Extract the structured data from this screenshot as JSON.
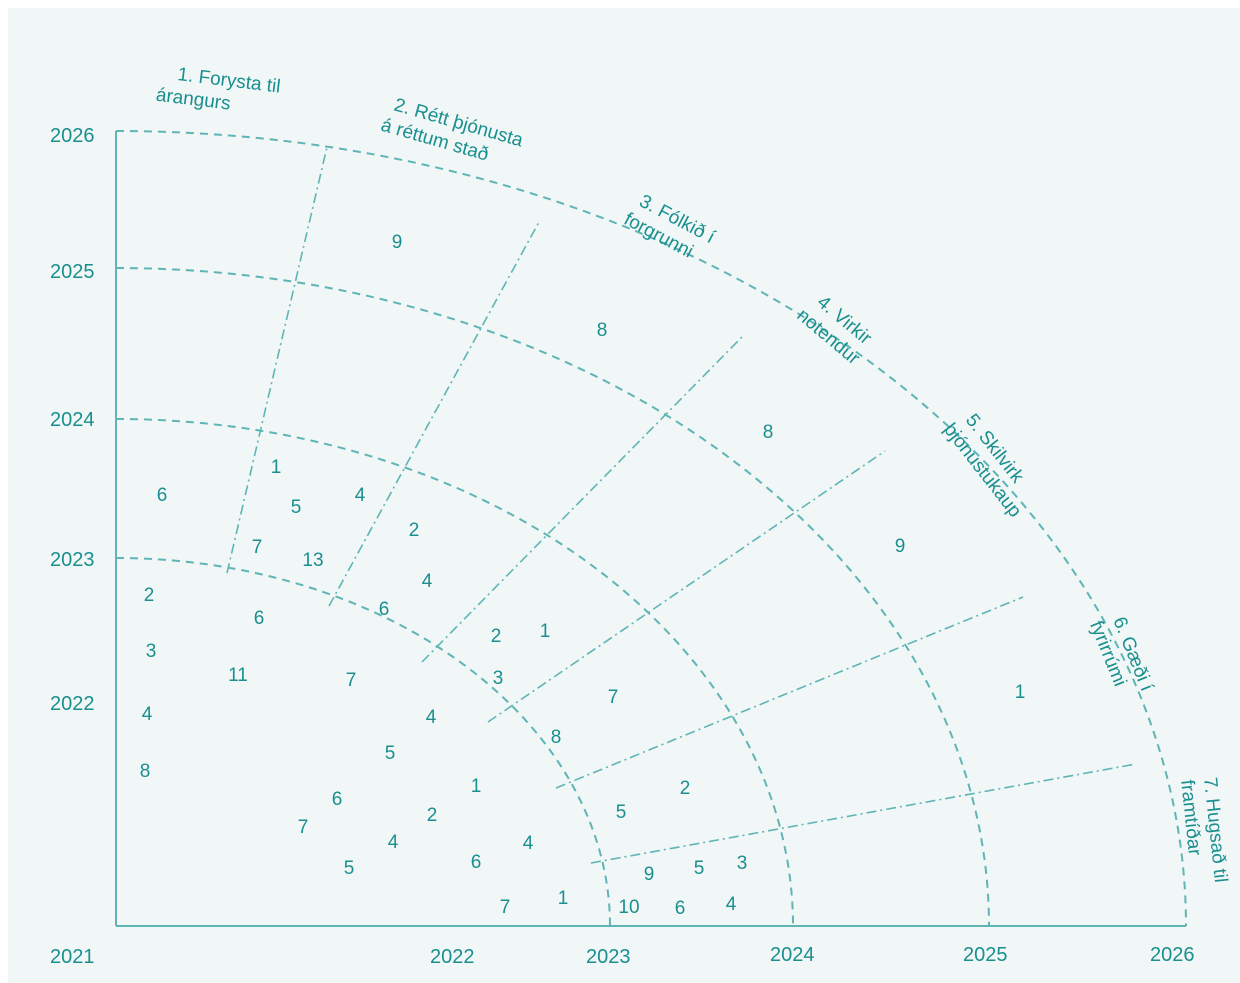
{
  "colors": {
    "accent": "#1a8f8f",
    "line": "#5fb5b5",
    "background": "#f1f6f6"
  },
  "vertical_years": [
    "2026",
    "2025",
    "2024",
    "2023",
    "2022"
  ],
  "horizontal_years": [
    "2021",
    "2022",
    "2023",
    "2024",
    "2025",
    "2026"
  ],
  "pillars": [
    {
      "line1": "1. Forysta til",
      "line2": "árangurs"
    },
    {
      "line1": "2. Rétt þjónusta",
      "line2": "á réttum stað"
    },
    {
      "line1": "3. Fólkið í",
      "line2": "forgrunni"
    },
    {
      "line1": "4. Virkir",
      "line2": "notendur"
    },
    {
      "line1": "5. Skilvirk",
      "line2": "þjónustukaup"
    },
    {
      "line1": "6. Gæði í",
      "line2": "fyrirrúmi"
    },
    {
      "line1": "7. Hugsað til",
      "line2": "framtíðar"
    }
  ],
  "numbers": [
    "6",
    "1",
    "5",
    "4",
    "7",
    "13",
    "2",
    "4",
    "6",
    "2",
    "1",
    "3",
    "2",
    "3",
    "4",
    "8",
    "6",
    "11",
    "7",
    "4",
    "7",
    "8",
    "5",
    "1",
    "6",
    "2",
    "7",
    "4",
    "5",
    "6",
    "4",
    "7",
    "1",
    "5",
    "2",
    "9",
    "5",
    "3",
    "10",
    "6",
    "4",
    "9",
    "8",
    "8",
    "9",
    "1"
  ]
}
